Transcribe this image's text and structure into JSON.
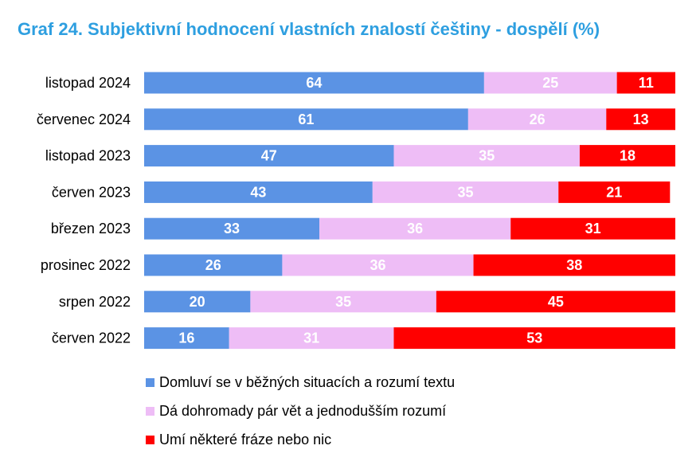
{
  "title": "Graf 24. Subjektivní hodnocení vlastních znalostí češtiny - dospělí (%)",
  "chart_data": {
    "type": "bar",
    "orientation": "horizontal",
    "stacked": true,
    "title": "Graf 24. Subjektivní hodnocení vlastních znalostí češtiny - dospělí (%)",
    "xlabel": "",
    "ylabel": "",
    "xlim": [
      0,
      100
    ],
    "grid": false,
    "legend_position": "bottom",
    "categories": [
      "listopad 2024",
      "červenec 2024",
      "listopad 2023",
      "červen 2023",
      "březen 2023",
      "prosinec 2022",
      "srpen 2022",
      "červen 2022"
    ],
    "series": [
      {
        "name": "Domluví se v běžných situacích a rozumí textu",
        "color": "#5b93e4",
        "values": [
          64,
          61,
          47,
          43,
          33,
          26,
          20,
          16
        ]
      },
      {
        "name": "Dá dohromady pár vět a jednodušším rozumí",
        "color": "#eebdf6",
        "values": [
          25,
          26,
          35,
          35,
          36,
          36,
          35,
          31
        ]
      },
      {
        "name": "Umí některé fráze nebo nic",
        "color": "#ff0000",
        "values": [
          11,
          13,
          18,
          21,
          31,
          38,
          45,
          53
        ]
      }
    ]
  }
}
